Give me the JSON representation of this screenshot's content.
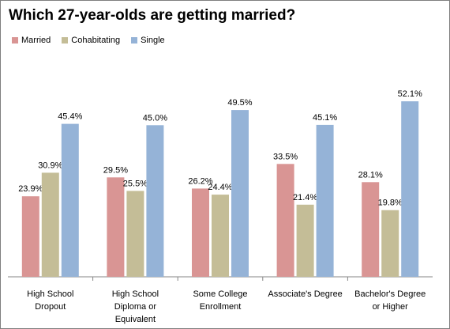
{
  "chart_data": {
    "type": "bar",
    "title": "Which 27-year-olds are getting married?",
    "xlabel": "",
    "ylabel": "",
    "ylim": [
      0,
      60
    ],
    "grid": false,
    "legend_position": "top-left",
    "categories": [
      [
        "High School",
        "Dropout"
      ],
      [
        "High School",
        "Diploma or",
        "Equivalent"
      ],
      [
        "Some College",
        "Enrollment"
      ],
      [
        "Associate's Degree"
      ],
      [
        "Bachelor's Degree",
        "or Higher"
      ]
    ],
    "series": [
      {
        "name": "Married",
        "color": "#d99594",
        "values": [
          23.9,
          29.5,
          26.2,
          33.5,
          28.1
        ],
        "labels": [
          "23.9%",
          "29.5%",
          "26.2%",
          "33.5%",
          "28.1%"
        ]
      },
      {
        "name": "Cohabitating",
        "color": "#c4bd97",
        "values": [
          30.9,
          25.5,
          24.4,
          21.4,
          19.8
        ],
        "labels": [
          "30.9%",
          "25.5%",
          "24.4%",
          "21.4%",
          "19.8%"
        ]
      },
      {
        "name": "Single",
        "color": "#95b3d7",
        "values": [
          45.4,
          45.0,
          49.5,
          45.1,
          52.1
        ],
        "labels": [
          "45.4%",
          "45.0%",
          "49.5%",
          "45.1%",
          "52.1%"
        ]
      }
    ]
  }
}
